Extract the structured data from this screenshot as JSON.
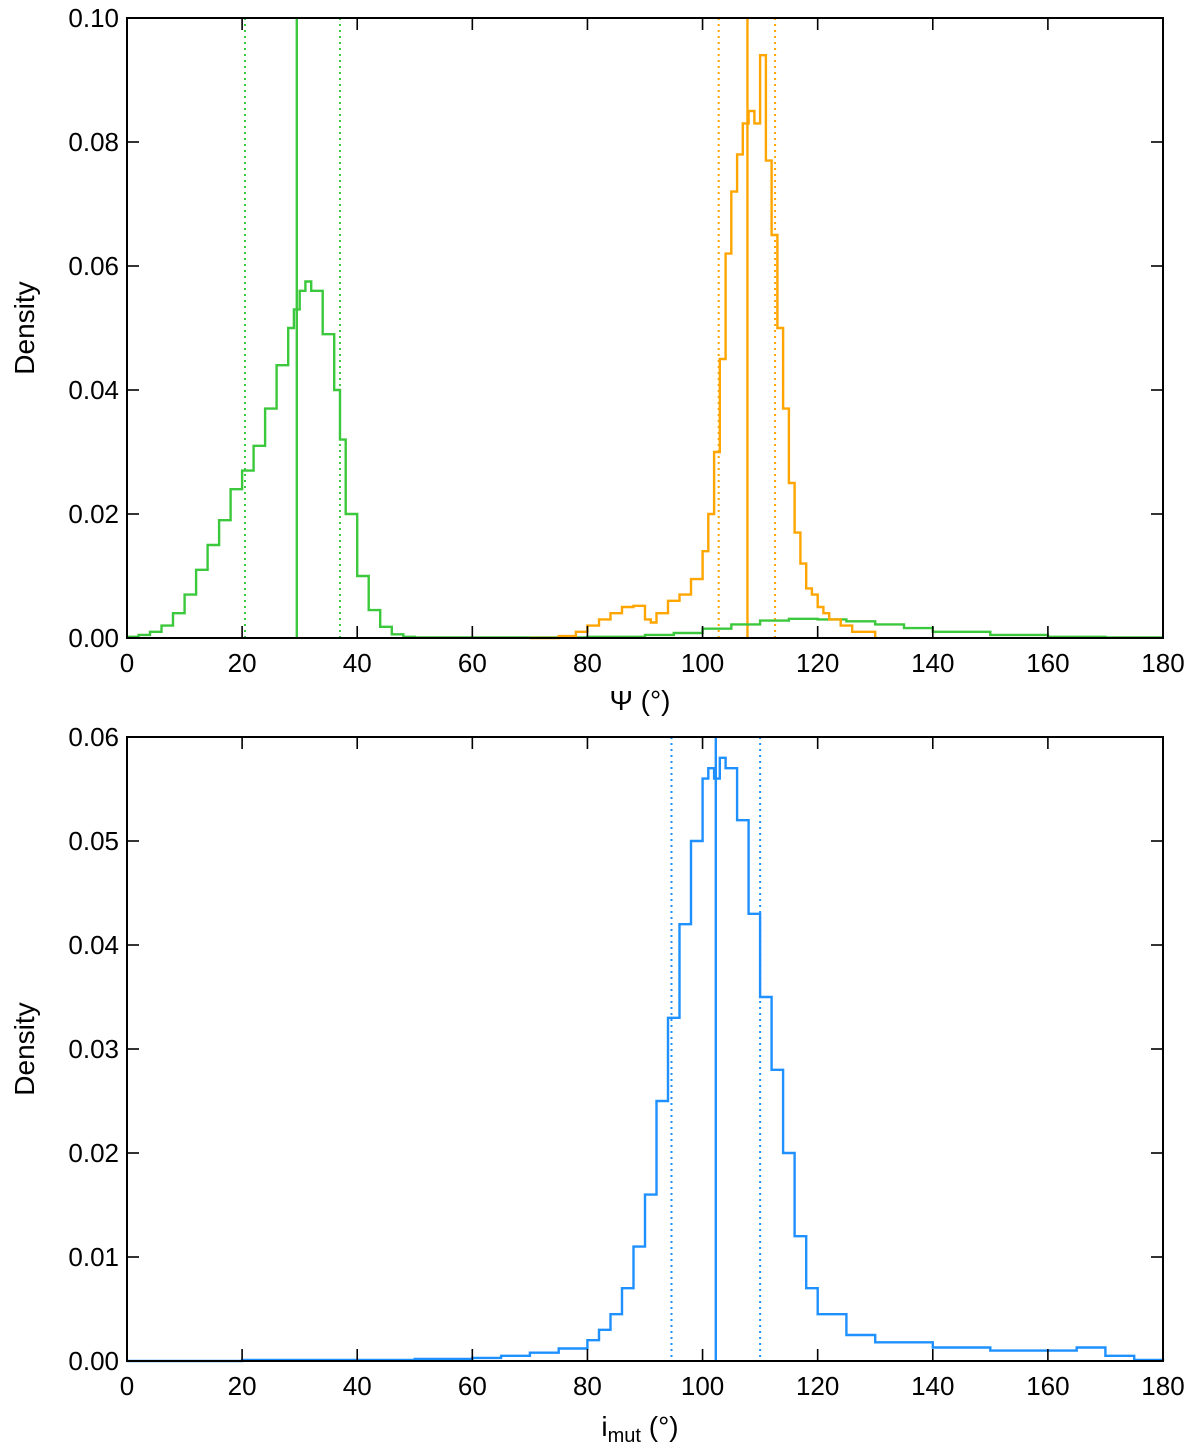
{
  "colors": {
    "green": "#3cc83c",
    "orange": "#ffa500",
    "blue": "#1e90ff",
    "axis": "#000000"
  },
  "chart_data": [
    {
      "type": "line",
      "style": "step-histogram",
      "xlabel": "Ψ (°)",
      "ylabel": "Density",
      "xlim": [
        0,
        180
      ],
      "ylim": [
        0,
        0.1
      ],
      "xticks": [
        "0",
        "20",
        "40",
        "60",
        "80",
        "100",
        "120",
        "140",
        "160",
        "180"
      ],
      "yticks": [
        "0.00",
        "0.02",
        "0.04",
        "0.06",
        "0.08",
        "0.10"
      ],
      "grid": false,
      "series": [
        {
          "color": "#3cc83c",
          "x": [
            0,
            2,
            4,
            6,
            8,
            10,
            12,
            14,
            16,
            18,
            20,
            22,
            24,
            26,
            28,
            29,
            30,
            31,
            32,
            34,
            36,
            37,
            38,
            40,
            42,
            44,
            46,
            48,
            50,
            55,
            60,
            70,
            80,
            90,
            95,
            100,
            105,
            110,
            115,
            120,
            125,
            130,
            135,
            140,
            150,
            160,
            170,
            180
          ],
          "values": [
            0.0002,
            0.0005,
            0.001,
            0.002,
            0.004,
            0.007,
            0.011,
            0.015,
            0.019,
            0.024,
            0.027,
            0.031,
            0.037,
            0.044,
            0.05,
            0.053,
            0.056,
            0.0575,
            0.056,
            0.049,
            0.04,
            0.032,
            0.02,
            0.01,
            0.0045,
            0.0018,
            0.0006,
            0.0002,
            0.0001,
            0.0001,
            0.0001,
            0.0001,
            0.0002,
            0.0005,
            0.0008,
            0.0015,
            0.0022,
            0.0028,
            0.0031,
            0.003,
            0.0027,
            0.0022,
            0.0016,
            0.001,
            0.0005,
            0.0002,
            0.0001,
            0.0001
          ]
        },
        {
          "color": "#ffa500",
          "x": [
            70,
            75,
            78,
            80,
            82,
            84,
            86,
            88,
            90,
            91,
            92,
            94,
            96,
            98,
            100,
            101,
            102,
            103,
            104,
            105,
            106,
            107,
            108,
            109,
            110,
            111,
            112,
            113,
            114,
            115,
            116,
            117,
            118,
            119,
            120,
            121,
            122,
            124,
            126,
            130
          ],
          "values": [
            0.0,
            0.0003,
            0.001,
            0.002,
            0.003,
            0.004,
            0.005,
            0.0052,
            0.003,
            0.0025,
            0.004,
            0.006,
            0.007,
            0.0095,
            0.014,
            0.02,
            0.03,
            0.045,
            0.062,
            0.072,
            0.078,
            0.083,
            0.085,
            0.083,
            0.094,
            0.077,
            0.065,
            0.05,
            0.037,
            0.025,
            0.017,
            0.012,
            0.008,
            0.007,
            0.005,
            0.004,
            0.003,
            0.002,
            0.001,
            0.0
          ]
        }
      ],
      "vlines": [
        {
          "x": 29.5,
          "color": "#3cc83c",
          "style": "solid"
        },
        {
          "x": 20.5,
          "color": "#3cc83c",
          "style": "dotted"
        },
        {
          "x": 37.0,
          "color": "#3cc83c",
          "style": "dotted"
        },
        {
          "x": 107.8,
          "color": "#ffa500",
          "style": "solid"
        },
        {
          "x": 102.8,
          "color": "#ffa500",
          "style": "dotted"
        },
        {
          "x": 112.6,
          "color": "#ffa500",
          "style": "dotted"
        }
      ]
    },
    {
      "type": "line",
      "style": "step-histogram",
      "xlabel_main": "i",
      "xlabel_sub": "mut",
      "xlabel_unit": " (°)",
      "ylabel": "Density",
      "xlim": [
        0,
        180
      ],
      "ylim": [
        0,
        0.06
      ],
      "xticks": [
        "0",
        "20",
        "40",
        "60",
        "80",
        "100",
        "120",
        "140",
        "160",
        "180"
      ],
      "yticks": [
        "0.00",
        "0.01",
        "0.02",
        "0.03",
        "0.04",
        "0.05",
        "0.06"
      ],
      "grid": false,
      "series": [
        {
          "color": "#1e90ff",
          "x": [
            0,
            10,
            20,
            30,
            40,
            50,
            60,
            65,
            70,
            75,
            80,
            82,
            84,
            86,
            88,
            90,
            92,
            94,
            96,
            98,
            100,
            101,
            102,
            103,
            104,
            106,
            108,
            110,
            112,
            114,
            116,
            118,
            120,
            125,
            130,
            140,
            150,
            160,
            165,
            170,
            175,
            180
          ],
          "values": [
            0.0,
            0.0,
            0.0001,
            0.0001,
            0.0001,
            0.0002,
            0.0003,
            0.0005,
            0.0008,
            0.0012,
            0.002,
            0.003,
            0.0045,
            0.007,
            0.011,
            0.016,
            0.025,
            0.033,
            0.042,
            0.05,
            0.056,
            0.057,
            0.056,
            0.058,
            0.057,
            0.052,
            0.043,
            0.035,
            0.028,
            0.02,
            0.012,
            0.007,
            0.0045,
            0.0025,
            0.0018,
            0.0013,
            0.001,
            0.001,
            0.0013,
            0.0005,
            0.0001,
            0.0
          ]
        }
      ],
      "vlines": [
        {
          "x": 102.3,
          "color": "#1e90ff",
          "style": "solid"
        },
        {
          "x": 94.6,
          "color": "#1e90ff",
          "style": "dotted"
        },
        {
          "x": 110.0,
          "color": "#1e90ff",
          "style": "dotted"
        }
      ]
    }
  ]
}
